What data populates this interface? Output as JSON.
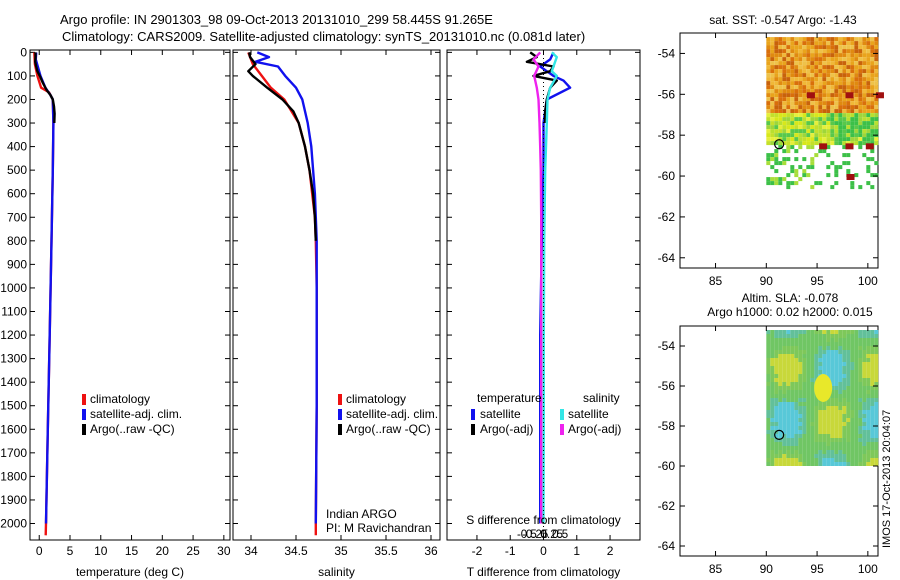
{
  "header": {
    "line1": "Argo profile: IN 2901303_98 09-Oct-2013 20131010_299 58.445S 91.265E",
    "line2": "Climatology: CARS2009. Satellite-adjusted climatology: synTS_20131010.nc (0.081d later)"
  },
  "colors": {
    "climatology": "#ee1111",
    "satellite": "#1111ee",
    "argo": "#000000",
    "sal_satellite": "#33e6e6",
    "sal_argo": "#ee22ee"
  },
  "chart_data": [
    {
      "id": "temperature",
      "type": "line",
      "xlabel": "temperature (deg C)",
      "ylabel": "",
      "xlim": [
        -1.5,
        31
      ],
      "ylim": [
        2070,
        -10
      ],
      "xticks": [
        0,
        5,
        10,
        15,
        20,
        25,
        30
      ],
      "xticklabels": [
        "0",
        "5",
        "10",
        "15",
        "20",
        "25",
        "30"
      ],
      "yticks": [
        0,
        100,
        200,
        300,
        400,
        500,
        600,
        700,
        800,
        900,
        1000,
        1100,
        1200,
        1300,
        1400,
        1500,
        1600,
        1700,
        1800,
        1900,
        2000
      ],
      "yticklabels": [
        "0",
        "100",
        "200",
        "300",
        "400",
        "500",
        "600",
        "700",
        "800",
        "900",
        "1000",
        "1100",
        "1200",
        "1300",
        "1400",
        "1500",
        "1600",
        "1700",
        "1800",
        "1900",
        "2000"
      ],
      "legend": [
        "climatology",
        "satellite-adj. clim.",
        "Argo(..raw -QC)"
      ],
      "series": [
        {
          "name": "climatology",
          "color": "#ee1111",
          "depth": [
            0,
            50,
            100,
            150,
            170,
            200,
            300,
            500,
            800,
            1200,
            1600,
            2000,
            2050
          ],
          "values": [
            -0.8,
            -0.7,
            -0.3,
            0.3,
            1.6,
            2.2,
            2.3,
            2.2,
            2.0,
            1.7,
            1.4,
            1.1,
            1.05
          ]
        },
        {
          "name": "satellite-adj. clim.",
          "color": "#1111ee",
          "depth": [
            0,
            30,
            100,
            150,
            180,
            200,
            300,
            500,
            800,
            1200,
            1600,
            2000
          ],
          "values": [
            -0.5,
            -0.55,
            0.2,
            1.0,
            1.8,
            2.2,
            2.3,
            2.2,
            2.0,
            1.7,
            1.4,
            1.1
          ]
        },
        {
          "name": "Argo(..raw -QC)",
          "color": "#000000",
          "depth": [
            0,
            20,
            40,
            60,
            80,
            100,
            130,
            160,
            180,
            200,
            230,
            260,
            300
          ],
          "values": [
            -0.6,
            -0.6,
            -0.65,
            -0.5,
            -0.3,
            0.1,
            0.6,
            1.2,
            1.8,
            2.2,
            2.4,
            2.5,
            2.45
          ]
        }
      ]
    },
    {
      "id": "salinity",
      "type": "line",
      "xlabel": "salinity",
      "ylabel": "",
      "xlim": [
        33.8,
        36.1
      ],
      "ylim": [
        2070,
        -10
      ],
      "xticks": [
        34,
        34.5,
        35,
        35.5,
        36
      ],
      "xticklabels": [
        "34",
        "34.5",
        "35",
        "35.5",
        "36"
      ],
      "legend": [
        "climatology",
        "satellite-adj. clim.",
        "Argo(..raw -QC)"
      ],
      "source_label_1": "Indian ARGO",
      "source_label_2": "PI: M Ravichandran",
      "series": [
        {
          "name": "climatology",
          "color": "#ee1111",
          "depth": [
            0,
            50,
            100,
            150,
            200,
            300,
            400,
            500,
            600,
            700,
            800,
            1000,
            1500,
            2000,
            2050
          ],
          "values": [
            33.97,
            34.02,
            34.12,
            34.22,
            34.37,
            34.53,
            34.6,
            34.65,
            34.68,
            34.71,
            34.72,
            34.73,
            34.73,
            34.72,
            34.72
          ]
        },
        {
          "name": "satellite-adj. clim.",
          "color": "#1111ee",
          "depth": [
            0,
            20,
            40,
            60,
            100,
            150,
            200,
            300,
            400,
            500,
            600,
            700,
            800,
            1000,
            1500,
            2000
          ],
          "values": [
            34.07,
            34.2,
            34.05,
            34.3,
            34.38,
            34.5,
            34.57,
            34.63,
            34.67,
            34.69,
            34.71,
            34.72,
            34.73,
            34.73,
            34.73,
            34.72
          ]
        },
        {
          "name": "Argo(..raw -QC)",
          "color": "#000000",
          "depth": [
            0,
            20,
            50,
            80,
            100,
            150,
            200,
            250,
            300,
            400,
            500,
            600,
            700,
            800
          ],
          "values": [
            33.98,
            33.99,
            34.05,
            33.97,
            34.02,
            34.18,
            34.35,
            34.47,
            34.53,
            34.6,
            34.65,
            34.69,
            34.71,
            34.72
          ]
        }
      ]
    },
    {
      "id": "difference",
      "type": "line",
      "xlabel": "T difference from climatology",
      "top_label": "S difference from climatology",
      "xlim": [
        -2.9,
        2.9
      ],
      "ylim": [
        2070,
        -10
      ],
      "xticks": [
        -2,
        -1,
        0,
        1,
        2
      ],
      "xticklabels": [
        "-2",
        "-1",
        "0",
        "1",
        "2"
      ],
      "sticks": [
        -0.5,
        -0.25,
        0,
        0.25,
        0.5
      ],
      "sticklabels": [
        "-0.5",
        "-0.25",
        "0",
        "0.25",
        "0.5"
      ],
      "legend_left_title": "temperature",
      "legend_right_title": "salinity",
      "legend_left": [
        "satellite",
        "Argo(-adj)"
      ],
      "legend_right": [
        "satellite",
        "Argo(-adj)"
      ],
      "series": [
        {
          "name": "T satellite",
          "color": "#1111ee",
          "depth": [
            0,
            30,
            60,
            80,
            100,
            120,
            150,
            200,
            300,
            500,
            800,
            1200,
            1600,
            2000
          ],
          "values": [
            0.3,
            0.2,
            -0.1,
            0.1,
            0.3,
            0.6,
            0.8,
            0.1,
            0.0,
            0.0,
            -0.05,
            -0.1,
            -0.1,
            -0.1
          ]
        },
        {
          "name": "T Argo(-adj)",
          "color": "#000000",
          "depth": [
            0,
            20,
            40,
            60,
            80,
            100,
            120,
            150,
            200,
            250,
            300
          ],
          "values": [
            -0.4,
            -0.2,
            -0.5,
            0.3,
            0.2,
            -0.3,
            0.4,
            0.2,
            0.1,
            0.05,
            0.05
          ]
        },
        {
          "name": "S satellite",
          "color": "#33e6e6",
          "depth": [
            0,
            20,
            40,
            60,
            80,
            100,
            150,
            200,
            300,
            500,
            800,
            1200,
            1600,
            2000
          ],
          "values": [
            0.25,
            0.4,
            0.35,
            0.3,
            0.25,
            0.4,
            0.2,
            0.12,
            0.1,
            0.05,
            0.02,
            0.01,
            0.01,
            0.0
          ]
        },
        {
          "name": "S Argo(-adj)",
          "color": "#ee22ee",
          "depth": [
            0,
            30,
            60,
            100,
            150,
            200,
            300,
            400,
            500,
            700,
            900,
            1200,
            1600,
            2000
          ],
          "values": [
            -0.1,
            -0.3,
            -0.15,
            -0.28,
            -0.2,
            -0.15,
            -0.12,
            -0.1,
            -0.08,
            -0.07,
            -0.07,
            -0.07,
            -0.07,
            -0.07
          ]
        }
      ]
    },
    {
      "id": "sst_map",
      "type": "heatmap",
      "title": "sat. SST: -0.547 Argo: -1.43",
      "xlim": [
        81.5,
        101
      ],
      "ylim": [
        -64.5,
        -53
      ],
      "xticks": [
        85,
        90,
        95,
        100
      ],
      "xticklabels": [
        "85",
        "90",
        "95",
        "100"
      ],
      "yticks": [
        -54,
        -56,
        -58,
        -60,
        -62,
        -64
      ],
      "yticklabels": [
        "-54",
        "-56",
        "-58",
        "-60",
        "-62",
        "-64"
      ],
      "data_extent": {
        "lon": [
          90,
          101
        ],
        "lat": [
          -60.5,
          -53.2
        ]
      },
      "float_lon": 91.265,
      "float_lat": -58.445
    },
    {
      "id": "sla_map",
      "type": "heatmap",
      "title_1": "Altim. SLA: -0.078",
      "title_2": "Argo h1000: 0.02 h2000: 0.015",
      "xlim": [
        81.5,
        101
      ],
      "ylim": [
        -64.5,
        -53
      ],
      "xticks": [
        85,
        90,
        95,
        100
      ],
      "xticklabels": [
        "85",
        "90",
        "95",
        "100"
      ],
      "yticks": [
        -54,
        -56,
        -58,
        -60,
        -62,
        -64
      ],
      "yticklabels": [
        "-54",
        "-56",
        "-58",
        "-60",
        "-62",
        "-64"
      ],
      "data_extent": {
        "lon": [
          90,
          101
        ],
        "lat": [
          -60,
          -53.2
        ]
      },
      "float_lon": 91.265,
      "float_lat": -58.445
    }
  ],
  "watermark": "IMOS 17-Oct-2013 20:04:07"
}
